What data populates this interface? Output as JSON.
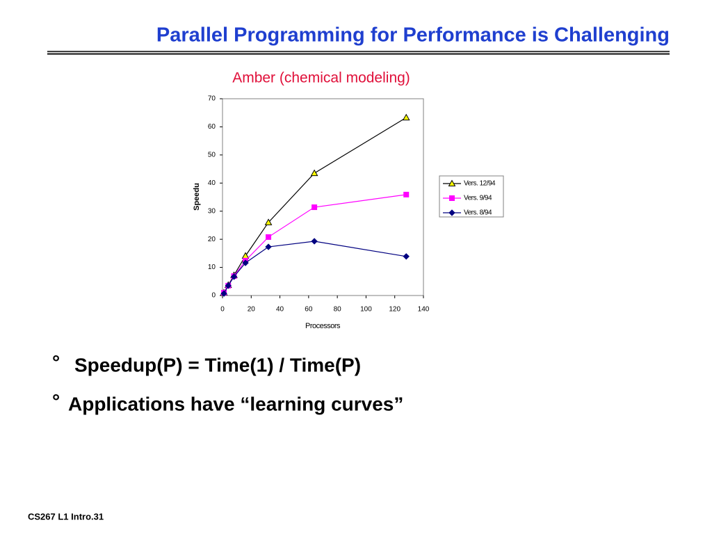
{
  "slide": {
    "title": "Parallel Programming for Performance is Challenging",
    "bullets": [
      {
        "marker": "°",
        "text": "Speedup(P) = Time(1) / Time(P)"
      },
      {
        "marker": "°",
        "text": "Applications have “learning curves”"
      }
    ],
    "footer": "CS267  L1  Intro.31"
  },
  "chart_data": {
    "type": "line",
    "title": "Amber (chemical modeling)",
    "x_label": "Processors",
    "y_label": "Speedu",
    "x": [
      1,
      4,
      8,
      16,
      32,
      64,
      128
    ],
    "series": [
      {
        "name": "Vers. 12/94",
        "color": "#000000",
        "marker": "triangle",
        "marker_fill": "#ffff00",
        "values": [
          1,
          3.7,
          7.2,
          14.1,
          26,
          43.5,
          63.3
        ]
      },
      {
        "name": "Vers. 9/94",
        "color": "#ff00ff",
        "marker": "square",
        "marker_fill": "#ff00ff",
        "values": [
          1,
          3.5,
          6.9,
          12.4,
          20.8,
          31.4,
          35.9
        ]
      },
      {
        "name": "Vers. 8/94",
        "color": "#000080",
        "marker": "diamond",
        "marker_fill": "#000080",
        "values": [
          0.7,
          3.5,
          6.7,
          11.6,
          17.3,
          19.3,
          13.9
        ]
      }
    ],
    "xlim": [
      0,
      140
    ],
    "xticks": [
      0,
      20,
      40,
      60,
      80,
      100,
      120,
      140
    ],
    "ylim": [
      0,
      70
    ],
    "yticks": [
      0,
      10,
      20,
      30,
      40,
      50,
      60,
      70
    ],
    "grid": false,
    "legend": "right"
  }
}
